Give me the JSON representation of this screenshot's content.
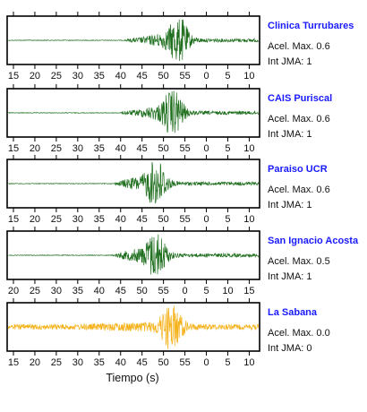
{
  "chart_data": {
    "type": "line",
    "xlabel": "Tiempo (s)",
    "colors": {
      "default": "#1f6f1f",
      "highlight": "#f5b21b"
    },
    "panels": [
      {
        "station": "Clinica Turrubares",
        "accel_label": "Acel. Max. 0.6",
        "jma_label": "Int JMA: 1",
        "highlight": false,
        "tick_labels": [
          "15",
          "20",
          "25",
          "30",
          "35",
          "40",
          "45",
          "50",
          "55",
          "0",
          "5",
          "10"
        ],
        "signal": {
          "onset": 40.5,
          "peak": 53.8,
          "amplitude": 0.9
        }
      },
      {
        "station": "CAIS Puriscal",
        "accel_label": "Acel. Max. 0.6",
        "jma_label": "Int JMA: 1",
        "highlight": false,
        "tick_labels": [
          "15",
          "20",
          "25",
          "30",
          "35",
          "40",
          "45",
          "50",
          "55",
          "0",
          "5",
          "10"
        ],
        "signal": {
          "onset": 39.5,
          "peak": 52.5,
          "amplitude": 0.95
        }
      },
      {
        "station": "Paraiso UCR",
        "accel_label": "Acel. Max. 0.6",
        "jma_label": "Int JMA: 1",
        "highlight": false,
        "tick_labels": [
          "15",
          "20",
          "25",
          "30",
          "35",
          "40",
          "45",
          "50",
          "55",
          "0",
          "5",
          "10"
        ],
        "signal": {
          "onset": 38.5,
          "peak": 48.5,
          "amplitude": 0.95
        }
      },
      {
        "station": "San Ignacio Acosta",
        "accel_label": "Acel. Max. 0.5",
        "jma_label": "Int JMA: 1",
        "highlight": false,
        "tick_labels": [
          "20",
          "25",
          "30",
          "35",
          "40",
          "45",
          "50",
          "55",
          "0",
          "5",
          "10",
          "15"
        ],
        "signal": {
          "onset": 38.0,
          "peak": 48.5,
          "amplitude": 0.95
        }
      },
      {
        "station": "La Sabana",
        "accel_label": "Acel. Max. 0.0",
        "jma_label": "Int JMA: 0",
        "highlight": true,
        "tick_labels": [
          "15",
          "20",
          "25",
          "30",
          "35",
          "40",
          "45",
          "50",
          "55",
          "0",
          "5",
          "10"
        ],
        "signal": {
          "onset": 15.0,
          "peak": 52.0,
          "amplitude": 0.95
        }
      }
    ]
  }
}
